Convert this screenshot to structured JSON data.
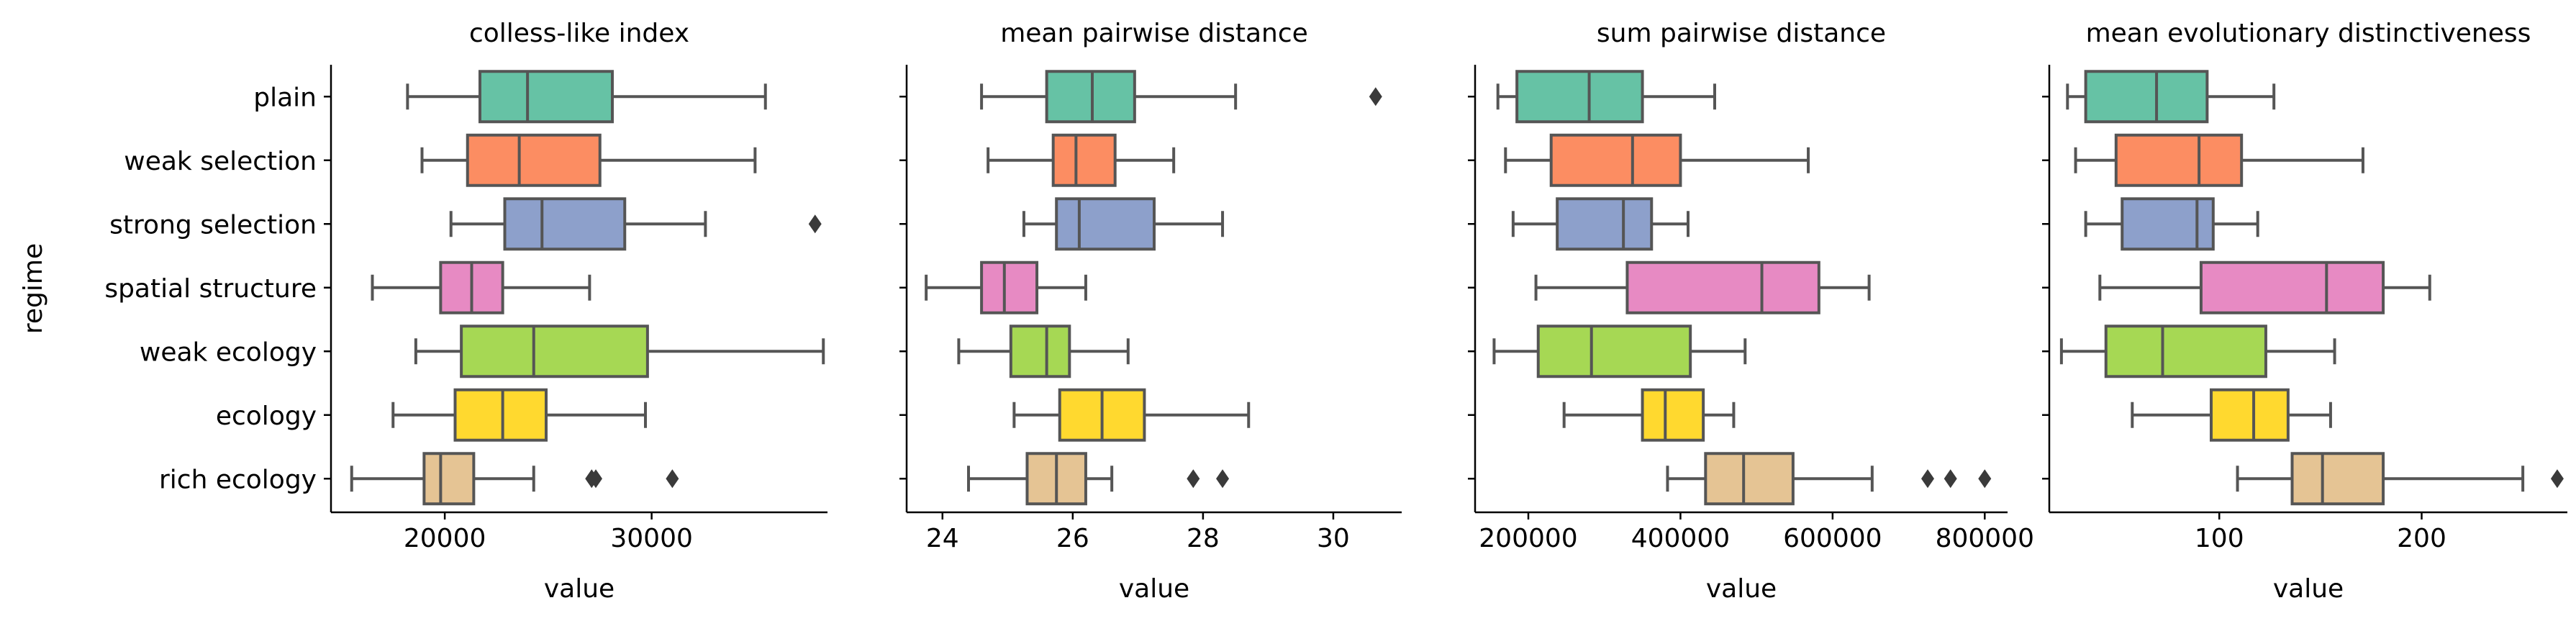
{
  "chart_data": [
    {
      "type": "boxplot",
      "title": "colless-like index",
      "xlabel": "value",
      "ylabel": "regime",
      "xlim": [
        14500,
        38500
      ],
      "xticks": [
        20000,
        30000
      ],
      "xtick_labels": [
        "20000",
        "30000"
      ],
      "categories": [
        "plain",
        "weak selection",
        "strong selection",
        "spatial structure",
        "weak ecology",
        "ecology",
        "rich ecology"
      ],
      "boxes": [
        {
          "category": "plain",
          "whislo": 18200,
          "q1": 21700,
          "med": 24000,
          "q3": 28100,
          "whishi": 35500,
          "fliers": []
        },
        {
          "category": "weak selection",
          "whislo": 18900,
          "q1": 21100,
          "med": 23600,
          "q3": 27500,
          "whishi": 35000,
          "fliers": []
        },
        {
          "category": "strong selection",
          "whislo": 20300,
          "q1": 22900,
          "med": 24700,
          "q3": 28700,
          "whishi": 32600,
          "fliers": [
            37900
          ]
        },
        {
          "category": "spatial structure",
          "whislo": 16500,
          "q1": 19800,
          "med": 21300,
          "q3": 22800,
          "whishi": 27000,
          "fliers": []
        },
        {
          "category": "weak ecology",
          "whislo": 18600,
          "q1": 20800,
          "med": 24300,
          "q3": 29800,
          "whishi": 38300,
          "fliers": []
        },
        {
          "category": "ecology",
          "whislo": 17500,
          "q1": 20500,
          "med": 22800,
          "q3": 24900,
          "whishi": 29700,
          "fliers": []
        },
        {
          "category": "rich ecology",
          "whislo": 15500,
          "q1": 19000,
          "med": 19800,
          "q3": 21400,
          "whishi": 24300,
          "fliers": [
            27100,
            27300,
            31000
          ]
        }
      ]
    },
    {
      "type": "boxplot",
      "title": "mean pairwise distance",
      "xlabel": "value",
      "xlim": [
        23.45,
        31.05
      ],
      "xticks": [
        24,
        26,
        28,
        30
      ],
      "xtick_labels": [
        "24",
        "26",
        "28",
        "30"
      ],
      "categories": [
        "plain",
        "weak selection",
        "strong selection",
        "spatial structure",
        "weak ecology",
        "ecology",
        "rich ecology"
      ],
      "boxes": [
        {
          "category": "plain",
          "whislo": 24.6,
          "q1": 25.6,
          "med": 26.3,
          "q3": 26.95,
          "whishi": 28.5,
          "fliers": [
            30.65
          ]
        },
        {
          "category": "weak selection",
          "whislo": 24.7,
          "q1": 25.7,
          "med": 26.05,
          "q3": 26.65,
          "whishi": 27.55,
          "fliers": []
        },
        {
          "category": "strong selection",
          "whislo": 25.25,
          "q1": 25.75,
          "med": 26.1,
          "q3": 27.25,
          "whishi": 28.3,
          "fliers": []
        },
        {
          "category": "spatial structure",
          "whislo": 23.75,
          "q1": 24.6,
          "med": 24.95,
          "q3": 25.45,
          "whishi": 26.2,
          "fliers": []
        },
        {
          "category": "weak ecology",
          "whislo": 24.25,
          "q1": 25.05,
          "med": 25.6,
          "q3": 25.95,
          "whishi": 26.85,
          "fliers": []
        },
        {
          "category": "ecology",
          "whislo": 25.1,
          "q1": 25.8,
          "med": 26.45,
          "q3": 27.1,
          "whishi": 28.7,
          "fliers": []
        },
        {
          "category": "rich ecology",
          "whislo": 24.4,
          "q1": 25.3,
          "med": 25.75,
          "q3": 26.2,
          "whishi": 26.6,
          "fliers": [
            27.85,
            28.3
          ]
        }
      ]
    },
    {
      "type": "boxplot",
      "title": "sum pairwise distance",
      "xlabel": "value",
      "xlim": [
        130000,
        830000
      ],
      "xticks": [
        200000,
        400000,
        600000,
        800000
      ],
      "xtick_labels": [
        "200000",
        "400000",
        "600000",
        "800000"
      ],
      "categories": [
        "plain",
        "weak selection",
        "strong selection",
        "spatial structure",
        "weak ecology",
        "ecology",
        "rich ecology"
      ],
      "boxes": [
        {
          "category": "plain",
          "whislo": 160000,
          "q1": 185000,
          "med": 280000,
          "q3": 350000,
          "whishi": 445000,
          "fliers": []
        },
        {
          "category": "weak selection",
          "whislo": 170000,
          "q1": 230000,
          "med": 337000,
          "q3": 400000,
          "whishi": 568000,
          "fliers": []
        },
        {
          "category": "strong selection",
          "whislo": 180000,
          "q1": 238000,
          "med": 325000,
          "q3": 362000,
          "whishi": 410000,
          "fliers": []
        },
        {
          "category": "spatial structure",
          "whislo": 210000,
          "q1": 330000,
          "med": 507000,
          "q3": 582000,
          "whishi": 648000,
          "fliers": []
        },
        {
          "category": "weak ecology",
          "whislo": 155000,
          "q1": 213000,
          "med": 283000,
          "q3": 413000,
          "whishi": 485000,
          "fliers": []
        },
        {
          "category": "ecology",
          "whislo": 247000,
          "q1": 350000,
          "med": 380000,
          "q3": 430000,
          "whishi": 470000,
          "fliers": []
        },
        {
          "category": "rich ecology",
          "whislo": 383000,
          "q1": 433000,
          "med": 483000,
          "q3": 548000,
          "whishi": 652000,
          "fliers": [
            725000,
            755000,
            800000
          ]
        }
      ]
    },
    {
      "type": "boxplot",
      "title": "mean evolutionary distinctiveness",
      "xlabel": "value",
      "xlim": [
        16,
        272
      ],
      "xticks": [
        100,
        200
      ],
      "xtick_labels": [
        "100",
        "200"
      ],
      "categories": [
        "plain",
        "weak selection",
        "strong selection",
        "spatial structure",
        "weak ecology",
        "ecology",
        "rich ecology"
      ],
      "boxes": [
        {
          "category": "plain",
          "whislo": 25,
          "q1": 34,
          "med": 69,
          "q3": 94,
          "whishi": 127,
          "fliers": []
        },
        {
          "category": "weak selection",
          "whislo": 29,
          "q1": 49,
          "med": 90,
          "q3": 111,
          "whishi": 171,
          "fliers": []
        },
        {
          "category": "strong selection",
          "whislo": 34,
          "q1": 52,
          "med": 89,
          "q3": 97,
          "whishi": 119,
          "fliers": []
        },
        {
          "category": "spatial structure",
          "whislo": 41,
          "q1": 91,
          "med": 153,
          "q3": 181,
          "whishi": 204,
          "fliers": []
        },
        {
          "category": "weak ecology",
          "whislo": 22,
          "q1": 44,
          "med": 72,
          "q3": 123,
          "whishi": 157,
          "fliers": []
        },
        {
          "category": "ecology",
          "whislo": 57,
          "q1": 96,
          "med": 117,
          "q3": 134,
          "whishi": 155,
          "fliers": []
        },
        {
          "category": "rich ecology",
          "whislo": 109,
          "q1": 136,
          "med": 151,
          "q3": 181,
          "whishi": 250,
          "fliers": [
            267
          ]
        }
      ]
    }
  ],
  "palette": [
    "#66c2a5",
    "#fc8d62",
    "#8da0cb",
    "#e78ac3",
    "#a6d854",
    "#ffd92f",
    "#e5c494"
  ],
  "line_color": "#555555",
  "axis_color": "#000000"
}
